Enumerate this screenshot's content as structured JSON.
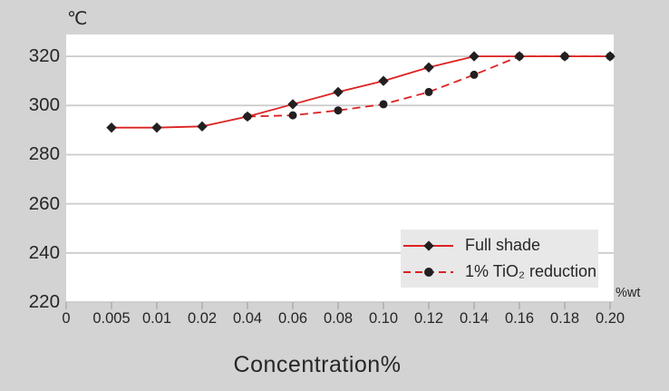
{
  "colors": {
    "background": "#d3d3d3",
    "plot_background": "#ffffff",
    "gridline": "#cbcbcb",
    "tick_mark": "#ababab",
    "line_red": "#dd2222",
    "marker_black": "#231f20",
    "legend_background": "#e8e8e8",
    "text": "#262626"
  },
  "chart_data": {
    "type": "line",
    "title": "",
    "xlabel": "Concentration%",
    "ylabel": "℃",
    "x_unit_label": "%wt",
    "x_tick_labels": [
      "0",
      "0.005",
      "0.01",
      "0.02",
      "0.04",
      "0.06",
      "0.08",
      "0.10",
      "0.12",
      "0.14",
      "0.16",
      "0.18",
      "0.20"
    ],
    "x_spacing": "categorical-equal",
    "y_ticks": [
      220,
      240,
      260,
      280,
      300,
      320
    ],
    "ylim": [
      220,
      328.9
    ],
    "grid": true,
    "legend_position": "lower-right",
    "series": [
      {
        "name": "Full shade",
        "marker": "diamond",
        "line": "solid",
        "color": "#dd2222",
        "marker_color": "#231f20",
        "x": [
          0.005,
          0.01,
          0.02,
          0.04,
          0.06,
          0.08,
          0.1,
          0.12,
          0.14,
          0.16,
          0.18,
          0.2
        ],
        "values": [
          291,
          291,
          291.5,
          295.5,
          300.5,
          305.5,
          310,
          315.5,
          320,
          320,
          320,
          320
        ]
      },
      {
        "name": "1% TiO₂ reduction",
        "marker": "circle",
        "line": "dashed",
        "color": "#dd2222",
        "marker_color": "#231f20",
        "x": [
          0.04,
          0.06,
          0.08,
          0.1,
          0.12,
          0.14,
          0.16,
          0.18,
          0.2
        ],
        "values": [
          295.5,
          296,
          298,
          300.5,
          305.5,
          312.5,
          320,
          320,
          320
        ]
      }
    ]
  }
}
